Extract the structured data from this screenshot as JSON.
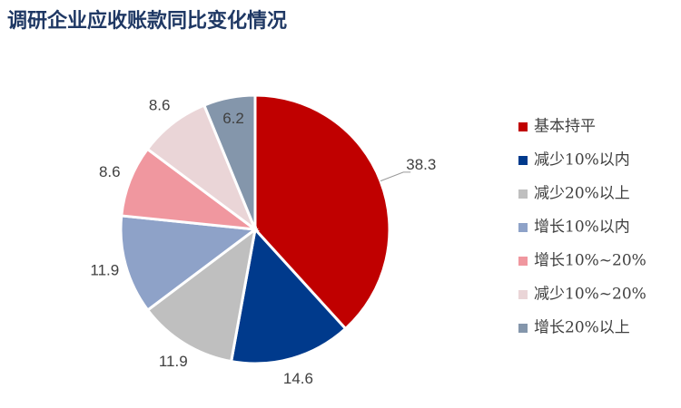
{
  "chart_data": {
    "type": "pie",
    "title": "调研企业应收账款同比变化情况",
    "categories": [
      "基本持平",
      "减少10%以内",
      "减少20%以上",
      "增长10%以内",
      "增长10%~20%",
      "减少10%~20%",
      "增长20%以上"
    ],
    "values": [
      38.3,
      14.6,
      11.9,
      11.9,
      8.6,
      8.6,
      6.2
    ],
    "colors": [
      "#c00000",
      "#003a8c",
      "#bfbfbf",
      "#8ea2c8",
      "#f0979f",
      "#ead5d7",
      "#8496ab"
    ],
    "legend": "right"
  }
}
